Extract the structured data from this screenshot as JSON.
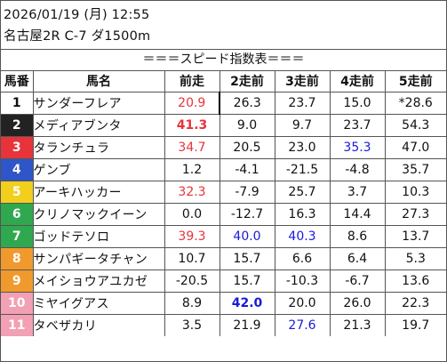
{
  "header": {
    "datetime": "2026/01/19 (月) 12:55",
    "race": "名古屋2R C-7 ダ1500m",
    "table_title": "＝＝＝スピード指数表＝＝＝"
  },
  "columns": [
    "馬番",
    "馬名",
    "前走",
    "2走前",
    "3走前",
    "4走前",
    "5走前"
  ],
  "colors": {
    "red": "#e8333a",
    "blue": "#1a1adb",
    "black": "#111111"
  },
  "rows": [
    {
      "num": "1",
      "bg": "#ffffff",
      "fg": "#111111",
      "name": "サンダーフレア",
      "values": [
        {
          "v": "20.9",
          "c": "red"
        },
        {
          "v": "26.3"
        },
        {
          "v": "23.7"
        },
        {
          "v": "15.0"
        },
        {
          "v": "*28.6"
        }
      ]
    },
    {
      "num": "2",
      "bg": "#222222",
      "fg": "#ffffff",
      "name": "メディアブンタ",
      "values": [
        {
          "v": "41.3",
          "c": "red",
          "b": true
        },
        {
          "v": "9.0"
        },
        {
          "v": "9.7"
        },
        {
          "v": "23.7"
        },
        {
          "v": "54.3"
        }
      ]
    },
    {
      "num": "3",
      "bg": "#e8333a",
      "fg": "#ffffff",
      "name": "タランチュラ",
      "values": [
        {
          "v": "34.7",
          "c": "red"
        },
        {
          "v": "20.5"
        },
        {
          "v": "23.0"
        },
        {
          "v": "35.3",
          "c": "blue"
        },
        {
          "v": "47.0"
        }
      ]
    },
    {
      "num": "4",
      "bg": "#2f56c8",
      "fg": "#ffffff",
      "name": "ゲンブ",
      "values": [
        {
          "v": "1.2"
        },
        {
          "v": "-4.1"
        },
        {
          "v": "-21.5"
        },
        {
          "v": "-4.8"
        },
        {
          "v": "35.7"
        }
      ]
    },
    {
      "num": "5",
      "bg": "#f2cf1d",
      "fg": "#ffffff",
      "name": "アーキハッカー",
      "values": [
        {
          "v": "32.3",
          "c": "red"
        },
        {
          "v": "-7.9"
        },
        {
          "v": "25.7"
        },
        {
          "v": "3.7"
        },
        {
          "v": "10.3"
        }
      ]
    },
    {
      "num": "6",
      "bg": "#2fa84f",
      "fg": "#ffffff",
      "name": "クリノマックイーン",
      "values": [
        {
          "v": "0.0"
        },
        {
          "v": "-12.7"
        },
        {
          "v": "16.3"
        },
        {
          "v": "14.4"
        },
        {
          "v": "27.3"
        }
      ]
    },
    {
      "num": "7",
      "bg": "#2fa84f",
      "fg": "#ffffff",
      "name": "ゴッドテソロ",
      "values": [
        {
          "v": "39.3",
          "c": "red"
        },
        {
          "v": "40.0",
          "c": "blue"
        },
        {
          "v": "40.3",
          "c": "blue"
        },
        {
          "v": "8.6"
        },
        {
          "v": "13.7"
        }
      ]
    },
    {
      "num": "8",
      "bg": "#f09a2e",
      "fg": "#ffffff",
      "name": "サンパギータチャン",
      "values": [
        {
          "v": "10.7"
        },
        {
          "v": "15.7"
        },
        {
          "v": "6.6"
        },
        {
          "v": "6.4"
        },
        {
          "v": "5.3"
        }
      ]
    },
    {
      "num": "9",
      "bg": "#f09a2e",
      "fg": "#ffffff",
      "name": "メイショウアユカゼ",
      "values": [
        {
          "v": "-20.5"
        },
        {
          "v": "15.7"
        },
        {
          "v": "-10.3"
        },
        {
          "v": "-6.7"
        },
        {
          "v": "13.6"
        }
      ]
    },
    {
      "num": "10",
      "bg": "#f2a0b4",
      "fg": "#ffffff",
      "name": "ミヤイグアス",
      "values": [
        {
          "v": "8.9"
        },
        {
          "v": "42.0",
          "c": "blue",
          "b": true
        },
        {
          "v": "20.0"
        },
        {
          "v": "26.0"
        },
        {
          "v": "22.3"
        }
      ]
    },
    {
      "num": "11",
      "bg": "#f2a0b4",
      "fg": "#ffffff",
      "name": "タベザカリ",
      "values": [
        {
          "v": "3.5"
        },
        {
          "v": "21.9"
        },
        {
          "v": "27.6",
          "c": "blue"
        },
        {
          "v": "21.3"
        },
        {
          "v": "19.7"
        }
      ]
    }
  ]
}
